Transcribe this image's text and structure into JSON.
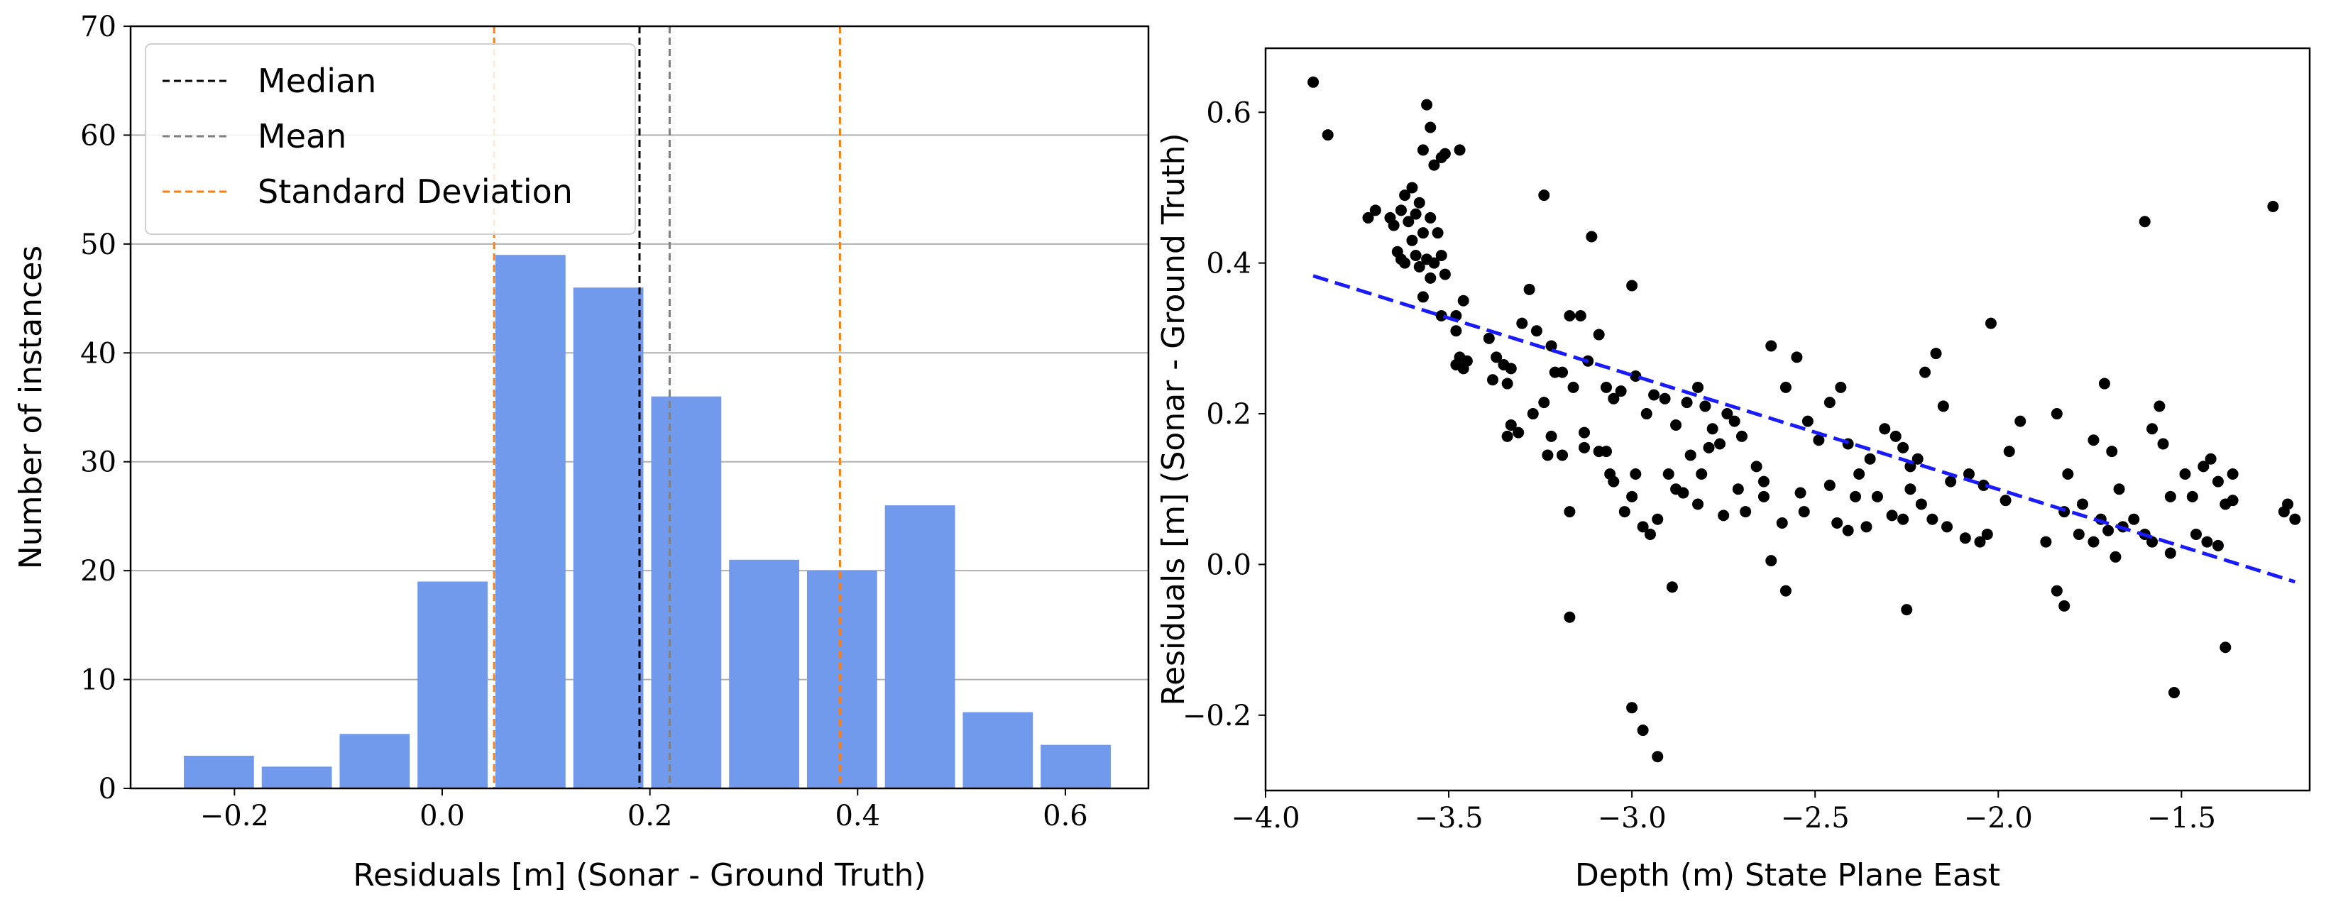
{
  "chart_data": [
    {
      "type": "bar",
      "xlabel": "Residuals [m] (Sonar - Ground Truth)",
      "ylabel": "Number of instances",
      "xlim": [
        -0.3,
        0.68
      ],
      "ylim": [
        0,
        70
      ],
      "grid": "horizontal",
      "bar_color": "#7199ec",
      "bins": [
        {
          "center": -0.215,
          "value": 3
        },
        {
          "center": -0.14,
          "value": 2
        },
        {
          "center": -0.065,
          "value": 5
        },
        {
          "center": 0.01,
          "value": 19
        },
        {
          "center": 0.085,
          "value": 49
        },
        {
          "center": 0.16,
          "value": 46
        },
        {
          "center": 0.235,
          "value": 36
        },
        {
          "center": 0.31,
          "value": 21
        },
        {
          "center": 0.385,
          "value": 20
        },
        {
          "center": 0.46,
          "value": 26
        },
        {
          "center": 0.535,
          "value": 7
        },
        {
          "center": 0.61,
          "value": 4
        }
      ],
      "bin_width": 0.0675,
      "xticks": [
        {
          "v": -0.2,
          "label": "−0.2"
        },
        {
          "v": 0.0,
          "label": "0.0"
        },
        {
          "v": 0.2,
          "label": "0.2"
        },
        {
          "v": 0.4,
          "label": "0.4"
        },
        {
          "v": 0.6,
          "label": "0.6"
        }
      ],
      "yticks": [
        {
          "v": 0,
          "label": "0"
        },
        {
          "v": 10,
          "label": "10"
        },
        {
          "v": 20,
          "label": "20"
        },
        {
          "v": 30,
          "label": "30"
        },
        {
          "v": 40,
          "label": "40"
        },
        {
          "v": 50,
          "label": "50"
        },
        {
          "v": 60,
          "label": "60"
        },
        {
          "v": 70,
          "label": "70"
        }
      ],
      "vlines": [
        {
          "name": "Median",
          "x": 0.19,
          "color": "#000000"
        },
        {
          "name": "Mean",
          "x": 0.219,
          "color": "#808080"
        },
        {
          "name": "Standard Deviation",
          "x": 0.05,
          "color": "#ff7f0e"
        },
        {
          "name": "Standard Deviation",
          "x": 0.383,
          "color": "#ff7f0e"
        }
      ],
      "legend": {
        "position": "top-left",
        "entries": [
          {
            "label": "Median",
            "color": "#000000"
          },
          {
            "label": "Mean",
            "color": "#808080"
          },
          {
            "label": "Standard Deviation",
            "color": "#ff7f0e"
          }
        ]
      }
    },
    {
      "type": "scatter",
      "xlabel": "Depth (m) State Plane East",
      "ylabel": "Residuals [m] (Sonar - Ground Truth)",
      "xlim": [
        -4.0,
        -1.15
      ],
      "ylim": [
        -0.3,
        0.685
      ],
      "point_color": "#000000",
      "trend_line": {
        "color": "#1a1aff",
        "style": "dashed",
        "x0": -3.87,
        "y0": 0.383,
        "x1": -1.19,
        "y1": -0.023
      },
      "xticks": [
        {
          "v": -4.0,
          "label": "−4.0"
        },
        {
          "v": -3.5,
          "label": "−3.5"
        },
        {
          "v": -3.0,
          "label": "−3.0"
        },
        {
          "v": -2.5,
          "label": "−2.5"
        },
        {
          "v": -2.0,
          "label": "−2.0"
        },
        {
          "v": -1.5,
          "label": "−1.5"
        }
      ],
      "yticks": [
        {
          "v": -0.2,
          "label": "−0.2"
        },
        {
          "v": 0.0,
          "label": "0.0"
        },
        {
          "v": 0.2,
          "label": "0.2"
        },
        {
          "v": 0.4,
          "label": "0.4"
        },
        {
          "v": 0.6,
          "label": "0.6"
        }
      ],
      "points": [
        [
          -3.87,
          0.64
        ],
        [
          -3.83,
          0.57
        ],
        [
          -3.56,
          0.61
        ],
        [
          -3.55,
          0.58
        ],
        [
          -3.57,
          0.55
        ],
        [
          -3.52,
          0.54
        ],
        [
          -3.51,
          0.545
        ],
        [
          -3.47,
          0.55
        ],
        [
          -3.54,
          0.53
        ],
        [
          -3.6,
          0.5
        ],
        [
          -3.62,
          0.49
        ],
        [
          -3.58,
          0.48
        ],
        [
          -3.63,
          0.47
        ],
        [
          -3.59,
          0.465
        ],
        [
          -3.66,
          0.46
        ],
        [
          -3.7,
          0.47
        ],
        [
          -3.72,
          0.46
        ],
        [
          -3.55,
          0.46
        ],
        [
          -3.61,
          0.455
        ],
        [
          -3.65,
          0.45
        ],
        [
          -3.57,
          0.44
        ],
        [
          -3.53,
          0.44
        ],
        [
          -3.6,
          0.43
        ],
        [
          -3.64,
          0.415
        ],
        [
          -3.59,
          0.41
        ],
        [
          -3.56,
          0.405
        ],
        [
          -3.62,
          0.4
        ],
        [
          -3.58,
          0.395
        ],
        [
          -3.54,
          0.4
        ],
        [
          -3.52,
          0.41
        ],
        [
          -3.63,
          0.405
        ],
        [
          -3.55,
          0.38
        ],
        [
          -3.51,
          0.385
        ],
        [
          -3.57,
          0.355
        ],
        [
          -3.52,
          0.33
        ],
        [
          -3.48,
          0.33
        ],
        [
          -3.46,
          0.35
        ],
        [
          -3.48,
          0.31
        ],
        [
          -3.47,
          0.275
        ],
        [
          -3.48,
          0.265
        ],
        [
          -3.45,
          0.27
        ],
        [
          -3.46,
          0.26
        ],
        [
          -3.39,
          0.3
        ],
        [
          -3.37,
          0.275
        ],
        [
          -3.35,
          0.265
        ],
        [
          -3.33,
          0.26
        ],
        [
          -3.38,
          0.245
        ],
        [
          -3.34,
          0.24
        ],
        [
          -3.3,
          0.32
        ],
        [
          -3.28,
          0.365
        ],
        [
          -3.24,
          0.49
        ],
        [
          -3.26,
          0.31
        ],
        [
          -3.22,
          0.29
        ],
        [
          -3.19,
          0.255
        ],
        [
          -3.17,
          0.33
        ],
        [
          -3.14,
          0.33
        ],
        [
          -3.12,
          0.27
        ],
        [
          -3.11,
          0.435
        ],
        [
          -3.09,
          0.305
        ],
        [
          -3.07,
          0.235
        ],
        [
          -3.05,
          0.22
        ],
        [
          -3.03,
          0.23
        ],
        [
          -3.0,
          0.37
        ],
        [
          -2.99,
          0.25
        ],
        [
          -2.96,
          0.2
        ],
        [
          -2.94,
          0.225
        ],
        [
          -2.91,
          0.22
        ],
        [
          -2.88,
          0.185
        ],
        [
          -2.85,
          0.215
        ],
        [
          -2.82,
          0.235
        ],
        [
          -2.8,
          0.21
        ],
        [
          -2.78,
          0.18
        ],
        [
          -2.76,
          0.16
        ],
        [
          -2.74,
          0.2
        ],
        [
          -2.72,
          0.19
        ],
        [
          -2.7,
          0.17
        ],
        [
          -2.66,
          0.13
        ],
        [
          -2.64,
          0.11
        ],
        [
          -2.62,
          0.29
        ],
        [
          -2.58,
          0.235
        ],
        [
          -2.55,
          0.275
        ],
        [
          -2.52,
          0.19
        ],
        [
          -2.49,
          0.165
        ],
        [
          -2.46,
          0.215
        ],
        [
          -2.43,
          0.235
        ],
        [
          -2.41,
          0.16
        ],
        [
          -2.38,
          0.12
        ],
        [
          -2.35,
          0.14
        ],
        [
          -2.31,
          0.18
        ],
        [
          -2.28,
          0.17
        ],
        [
          -2.26,
          0.155
        ],
        [
          -2.24,
          0.13
        ],
        [
          -2.22,
          0.14
        ],
        [
          -2.2,
          0.255
        ],
        [
          -2.17,
          0.28
        ],
        [
          -2.15,
          0.21
        ],
        [
          -2.13,
          0.11
        ],
        [
          -2.08,
          0.12
        ],
        [
          -2.04,
          0.105
        ],
        [
          -2.02,
          0.32
        ],
        [
          -1.97,
          0.15
        ],
        [
          -1.94,
          0.19
        ],
        [
          -1.84,
          0.2
        ],
        [
          -1.81,
          0.12
        ],
        [
          -1.77,
          0.08
        ],
        [
          -1.74,
          0.165
        ],
        [
          -1.71,
          0.24
        ],
        [
          -1.69,
          0.15
        ],
        [
          -1.67,
          0.1
        ],
        [
          -1.63,
          0.06
        ],
        [
          -1.6,
          0.455
        ],
        [
          -1.58,
          0.18
        ],
        [
          -1.56,
          0.21
        ],
        [
          -1.55,
          0.16
        ],
        [
          -1.53,
          0.09
        ],
        [
          -1.49,
          0.12
        ],
        [
          -1.47,
          0.09
        ],
        [
          -1.44,
          0.13
        ],
        [
          -1.42,
          0.14
        ],
        [
          -1.4,
          0.11
        ],
        [
          -1.38,
          0.08
        ],
        [
          -1.36,
          0.12
        ],
        [
          -1.25,
          0.475
        ],
        [
          -1.21,
          0.08
        ],
        [
          -1.19,
          0.06
        ],
        [
          -1.22,
          0.07
        ],
        [
          -3.34,
          0.17
        ],
        [
          -3.33,
          0.185
        ],
        [
          -3.31,
          0.175
        ],
        [
          -3.24,
          0.215
        ],
        [
          -3.27,
          0.2
        ],
        [
          -3.22,
          0.17
        ],
        [
          -3.23,
          0.145
        ],
        [
          -3.19,
          0.145
        ],
        [
          -3.21,
          0.255
        ],
        [
          -3.16,
          0.235
        ],
        [
          -3.13,
          0.175
        ],
        [
          -3.13,
          0.155
        ],
        [
          -3.09,
          0.15
        ],
        [
          -3.07,
          0.15
        ],
        [
          -3.06,
          0.12
        ],
        [
          -3.05,
          0.11
        ],
        [
          -3.02,
          0.07
        ],
        [
          -3.0,
          0.09
        ],
        [
          -2.99,
          0.12
        ],
        [
          -2.97,
          0.05
        ],
        [
          -2.95,
          0.04
        ],
        [
          -2.93,
          0.06
        ],
        [
          -2.9,
          0.12
        ],
        [
          -2.88,
          0.1
        ],
        [
          -2.86,
          0.095
        ],
        [
          -2.84,
          0.145
        ],
        [
          -2.82,
          0.08
        ],
        [
          -2.81,
          0.12
        ],
        [
          -2.79,
          0.155
        ],
        [
          -2.75,
          0.065
        ],
        [
          -2.71,
          0.1
        ],
        [
          -2.69,
          0.07
        ],
        [
          -2.64,
          0.09
        ],
        [
          -2.59,
          0.055
        ],
        [
          -2.54,
          0.095
        ],
        [
          -2.53,
          0.07
        ],
        [
          -2.46,
          0.105
        ],
        [
          -2.44,
          0.055
        ],
        [
          -2.41,
          0.045
        ],
        [
          -2.39,
          0.09
        ],
        [
          -2.36,
          0.05
        ],
        [
          -2.33,
          0.09
        ],
        [
          -2.29,
          0.065
        ],
        [
          -2.26,
          0.06
        ],
        [
          -2.24,
          0.1
        ],
        [
          -2.21,
          0.08
        ],
        [
          -2.18,
          0.06
        ],
        [
          -2.14,
          0.05
        ],
        [
          -2.09,
          0.035
        ],
        [
          -2.05,
          0.03
        ],
        [
          -2.03,
          0.04
        ],
        [
          -1.98,
          0.085
        ],
        [
          -1.87,
          0.03
        ],
        [
          -1.82,
          0.07
        ],
        [
          -1.78,
          0.04
        ],
        [
          -1.74,
          0.03
        ],
        [
          -1.72,
          0.06
        ],
        [
          -1.7,
          0.045
        ],
        [
          -1.68,
          0.01
        ],
        [
          -1.66,
          0.05
        ],
        [
          -1.6,
          0.04
        ],
        [
          -1.58,
          0.03
        ],
        [
          -1.53,
          0.015
        ],
        [
          -1.46,
          0.04
        ],
        [
          -1.43,
          0.03
        ],
        [
          -1.4,
          0.025
        ],
        [
          -1.36,
          0.085
        ],
        [
          -3.17,
          0.07
        ],
        [
          -3.17,
          -0.07
        ],
        [
          -2.89,
          -0.03
        ],
        [
          -2.62,
          0.005
        ],
        [
          -2.58,
          -0.035
        ],
        [
          -2.25,
          -0.06
        ],
        [
          -1.84,
          -0.035
        ],
        [
          -1.82,
          -0.055
        ],
        [
          -1.52,
          -0.17
        ],
        [
          -1.38,
          -0.11
        ],
        [
          -3.0,
          -0.19
        ],
        [
          -2.97,
          -0.22
        ],
        [
          -2.93,
          -0.255
        ]
      ]
    }
  ]
}
